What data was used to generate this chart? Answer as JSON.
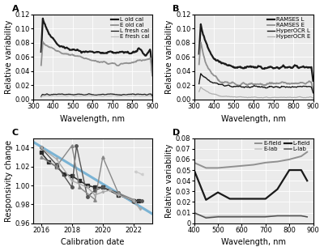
{
  "panel_A": {
    "title": "A",
    "xlabel": "Wavelength, nm",
    "ylabel": "Relative variability",
    "xlim": [
      300,
      900
    ],
    "ylim": [
      0.0,
      0.12
    ],
    "yticks": [
      0.0,
      0.02,
      0.04,
      0.06,
      0.08,
      0.1,
      0.12
    ],
    "xticks": [
      300,
      400,
      500,
      600,
      700,
      800,
      900
    ],
    "legend": [
      "L old cal",
      "E old cal",
      "L fresh cal",
      "E fresh cal"
    ]
  },
  "panel_B": {
    "title": "B",
    "xlabel": "Wavelength, nm",
    "ylabel": "Relative variability",
    "xlim": [
      300,
      900
    ],
    "ylim": [
      0.0,
      0.12
    ],
    "yticks": [
      0.0,
      0.02,
      0.04,
      0.06,
      0.08,
      0.1,
      0.12
    ],
    "xticks": [
      300,
      400,
      500,
      600,
      700,
      800,
      900
    ],
    "legend": [
      "RAMSES L",
      "RAMSES E",
      "HyperOCR L",
      "HyperOCR E"
    ]
  },
  "panel_C": {
    "title": "C",
    "xlabel": "Calibration date",
    "ylabel": "Responsivity change",
    "xlim": [
      2015.5,
      2023.2
    ],
    "ylim": [
      0.96,
      1.05
    ],
    "yticks": [
      0.96,
      0.98,
      1.0,
      1.02,
      1.04
    ],
    "xticks": [
      2016,
      2018,
      2020,
      2022
    ],
    "trend_x": [
      2015.5,
      2023.5
    ],
    "trend_y": [
      1.046,
      0.967
    ]
  },
  "panel_D": {
    "title": "D",
    "xlabel": "Wavelength, nm",
    "ylabel": "Relative variability",
    "xlim": [
      400,
      900
    ],
    "ylim": [
      0.0,
      0.08
    ],
    "yticks": [
      0,
      0.01,
      0.02,
      0.03,
      0.04,
      0.05,
      0.06,
      0.07,
      0.08
    ],
    "xticks": [
      400,
      500,
      600,
      700,
      800,
      900
    ],
    "legend": [
      "E-field",
      "E-lab",
      "L-field",
      "L-lab"
    ]
  },
  "bg_color": "#ebebeb",
  "font_size": 7
}
